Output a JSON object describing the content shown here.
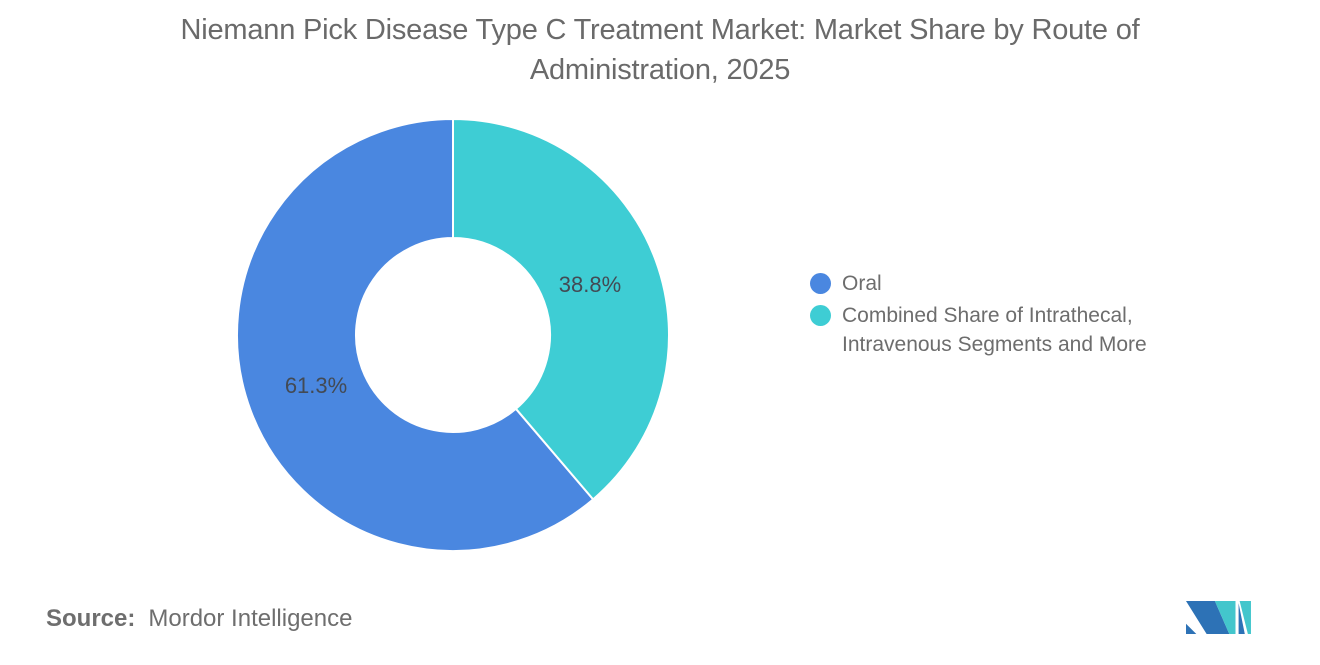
{
  "title": "Niemann Pick Disease Type C Treatment Market: Market Share by Route of Administration, 2025",
  "chart_data": {
    "type": "pie",
    "subtype": "donut",
    "title": "Niemann Pick Disease Type C Treatment Market: Market Share by Route of Administration, 2025",
    "unit": "%",
    "slices": [
      {
        "label": "Oral",
        "value": 61.3,
        "display_label": "61.3%",
        "color": "#4a87e0"
      },
      {
        "label": "Combined Share of Intrathecal, Intravenous Segments and More",
        "value": 38.8,
        "display_label": "38.8%",
        "color": "#3ecdd4"
      }
    ],
    "legend_position": "right",
    "data_labels_color": "#434a54",
    "inner_radius_ratio": 0.45,
    "background": "#ffffff"
  },
  "source": {
    "label": "Source:",
    "text": "Mordor Intelligence"
  },
  "logo": {
    "name": "Mordor Intelligence logo mark",
    "blue": "#2d72b6",
    "teal": "#43c6cc"
  }
}
